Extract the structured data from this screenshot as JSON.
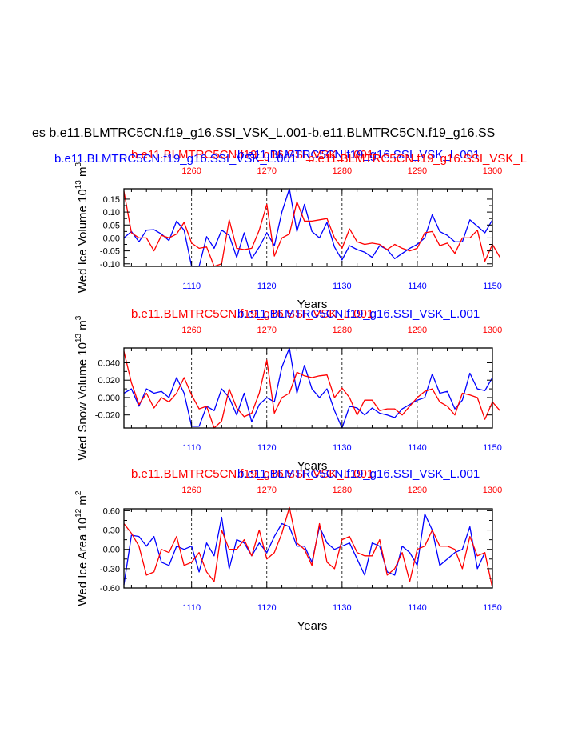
{
  "page_title": "es b.e11.BLMTRC5CN.f19_g16.SSI_VSK_L.001-b.e11.BLMTRC5CN.f19_g16.SS",
  "colors": {
    "blue": "#0000ff",
    "red": "#ff0000",
    "axis": "#000000"
  },
  "chart_data": [
    {
      "type": "line",
      "title_red": "b.e11.BLMTRC5CN.f19_g16.SSI_VSK_L.001",
      "title_blue": "b.e11.BLMTRC5CN.f19_g16.SSI_VSK_L.001",
      "title_overlap_blue": "b.e11.BLMTRC5CN.f19_g16.SSI_VSK_L.001",
      "title_overlap_red": "b.e11.BLMTRC5CN.f19_g16.SSI_VSK_L",
      "ylabel": "Wed Ice Volume 10",
      "ylabel_exp": "13",
      "ylabel_unit": " m",
      "ylabel_unit_exp": "3",
      "xlabel": "Years",
      "ylim": [
        -0.11,
        0.19
      ],
      "yticks": [
        -0.1,
        -0.05,
        0.0,
        0.05,
        0.1,
        0.15
      ],
      "ytick_labels": [
        "-0.10",
        "-0.05",
        "0.00",
        "0.05",
        "0.10",
        "0.15"
      ],
      "bottom_axis": {
        "range": [
          1101,
          1150
        ],
        "ticks": [
          1110,
          1120,
          1130,
          1140,
          1150
        ]
      },
      "top_axis": {
        "range": [
          1251,
          1300
        ],
        "ticks": [
          1260,
          1270,
          1280,
          1290,
          1300
        ]
      },
      "series": [
        {
          "name": "blue",
          "color": "#0000ff",
          "axis": "bottom",
          "values": [
            0.0,
            0.025,
            -0.015,
            0.03,
            0.032,
            0.015,
            -0.01,
            0.065,
            0.03,
            -0.11,
            -0.11,
            0.005,
            -0.04,
            0.03,
            0.01,
            -0.075,
            0.02,
            -0.08,
            -0.035,
            0.02,
            -0.03,
            0.1,
            0.19,
            0.025,
            0.13,
            0.025,
            0.0,
            0.06,
            -0.035,
            -0.085,
            -0.03,
            -0.045,
            -0.055,
            -0.075,
            -0.03,
            -0.045,
            -0.08,
            -0.06,
            -0.04,
            -0.025,
            0.0,
            0.09,
            0.025,
            0.01,
            -0.015,
            -0.015,
            0.07,
            0.045,
            0.02,
            0.07
          ]
        },
        {
          "name": "red",
          "color": "#ff0000",
          "axis": "top",
          "values": [
            0.18,
            0.02,
            0.0,
            0.0,
            -0.05,
            0.01,
            0.0,
            0.015,
            0.06,
            -0.02,
            -0.04,
            -0.035,
            -0.11,
            -0.1,
            0.07,
            -0.04,
            -0.045,
            -0.04,
            0.03,
            0.13,
            -0.07,
            0.0,
            0.015,
            0.14,
            0.065,
            0.065,
            0.07,
            0.075,
            0.0,
            -0.04,
            0.035,
            -0.015,
            -0.025,
            -0.02,
            -0.025,
            -0.045,
            -0.025,
            -0.04,
            -0.05,
            -0.04,
            0.02,
            0.025,
            -0.03,
            -0.02,
            -0.06,
            0.0,
            0.0,
            0.03,
            -0.09,
            -0.025,
            -0.075
          ]
        }
      ]
    },
    {
      "type": "line",
      "title_red": "b.e11.BLMTRC5CN.f19_g16.SSI_VSK_L.001",
      "title_blue": "b.e11.BLMTRC5CN.f19_g16.SSI_VSK_L.001",
      "ylabel": "Wed Snow Volume 10",
      "ylabel_exp": "13",
      "ylabel_unit": " m",
      "ylabel_unit_exp": "3",
      "xlabel": "Years",
      "ylim": [
        -0.035,
        0.057
      ],
      "yticks": [
        -0.02,
        0.0,
        0.02,
        0.04
      ],
      "ytick_labels": [
        "-0.020",
        "0.000",
        "0.020",
        "0.040"
      ],
      "bottom_axis": {
        "range": [
          1101,
          1150
        ],
        "ticks": [
          1110,
          1120,
          1130,
          1140,
          1150
        ]
      },
      "top_axis": {
        "range": [
          1251,
          1300
        ],
        "ticks": [
          1260,
          1270,
          1280,
          1290,
          1300
        ]
      },
      "series": [
        {
          "name": "blue",
          "color": "#0000ff",
          "axis": "bottom",
          "values": [
            0.005,
            0.01,
            -0.01,
            0.01,
            0.005,
            0.007,
            0.0,
            0.023,
            0.005,
            -0.033,
            -0.033,
            -0.01,
            -0.015,
            0.01,
            0.0,
            -0.02,
            0.005,
            -0.028,
            -0.008,
            0.0,
            -0.005,
            0.035,
            0.057,
            0.005,
            0.037,
            0.01,
            0.0,
            0.01,
            -0.015,
            -0.035,
            -0.01,
            -0.012,
            -0.02,
            -0.012,
            -0.018,
            -0.02,
            -0.023,
            -0.013,
            -0.008,
            -0.003,
            0.0,
            0.027,
            0.005,
            0.007,
            -0.013,
            -0.003,
            0.028,
            0.01,
            0.008,
            0.023
          ]
        },
        {
          "name": "red",
          "color": "#ff0000",
          "axis": "top",
          "values": [
            0.053,
            0.017,
            -0.008,
            0.005,
            -0.012,
            0.0,
            -0.005,
            0.005,
            0.023,
            0.003,
            -0.013,
            -0.01,
            -0.035,
            -0.027,
            0.01,
            -0.012,
            -0.022,
            -0.018,
            0.005,
            0.043,
            -0.018,
            0.0,
            0.005,
            0.029,
            0.025,
            0.023,
            0.025,
            0.026,
            0.0,
            0.011,
            0.0,
            -0.02,
            -0.003,
            -0.003,
            -0.015,
            -0.013,
            -0.013,
            -0.02,
            -0.01,
            0.0,
            0.007,
            0.01,
            -0.005,
            -0.01,
            -0.02,
            0.005,
            0.003,
            0.0,
            -0.025,
            -0.005,
            -0.015
          ]
        }
      ]
    },
    {
      "type": "line",
      "title_red": "b.e11.BLMTRC5CN.f19_g16.SSI_VSK_L.001",
      "title_blue": "b.e11.BLMTRC5CN.f19_g16.SSI_VSK_L.001",
      "ylabel": "Wed Ice Area 10",
      "ylabel_exp": "12",
      "ylabel_unit": " m",
      "ylabel_unit_exp": "2",
      "xlabel": "Years",
      "ylim": [
        -0.6,
        0.63
      ],
      "yticks": [
        -0.6,
        -0.3,
        0.0,
        0.3,
        0.6
      ],
      "ytick_labels": [
        "-0.60",
        "-0.30",
        "0.00",
        "0.30",
        "0.60"
      ],
      "bottom_axis": {
        "range": [
          1101,
          1150
        ],
        "ticks": [
          1110,
          1120,
          1130,
          1140,
          1150
        ]
      },
      "top_axis": {
        "range": [
          1251,
          1300
        ],
        "ticks": [
          1260,
          1270,
          1280,
          1290,
          1300
        ]
      },
      "series": [
        {
          "name": "blue",
          "color": "#0000ff",
          "axis": "bottom",
          "values": [
            -0.55,
            0.22,
            0.2,
            0.05,
            0.2,
            -0.2,
            -0.25,
            0.05,
            0.0,
            0.05,
            -0.35,
            0.1,
            -0.1,
            0.5,
            -0.3,
            0.15,
            0.1,
            -0.1,
            0.1,
            -0.05,
            0.2,
            0.4,
            0.35,
            0.05,
            0.05,
            -0.2,
            0.35,
            0.1,
            0.0,
            0.05,
            0.1,
            -0.15,
            -0.4,
            0.1,
            0.05,
            -0.35,
            -0.4,
            0.05,
            -0.05,
            -0.25,
            0.55,
            0.3,
            -0.25,
            -0.15,
            -0.05,
            0.0,
            0.35,
            -0.3,
            -0.05
          ]
        },
        {
          "name": "red",
          "color": "#ff0000",
          "axis": "top",
          "values": [
            0.4,
            0.25,
            0.05,
            -0.4,
            -0.35,
            0.0,
            -0.05,
            0.2,
            -0.25,
            -0.2,
            -0.05,
            -0.35,
            -0.5,
            0.3,
            0.0,
            0.0,
            0.15,
            -0.1,
            0.3,
            -0.15,
            -0.05,
            0.25,
            0.65,
            0.1,
            0.0,
            -0.25,
            0.4,
            -0.2,
            -0.3,
            0.15,
            0.2,
            -0.05,
            -0.1,
            -0.1,
            0.15,
            -0.4,
            -0.3,
            -0.05,
            -0.5,
            0.0,
            0.05,
            0.3,
            0.05,
            0.05,
            0.0,
            -0.3,
            0.2,
            -0.1,
            -0.05,
            -0.6
          ]
        }
      ]
    }
  ]
}
